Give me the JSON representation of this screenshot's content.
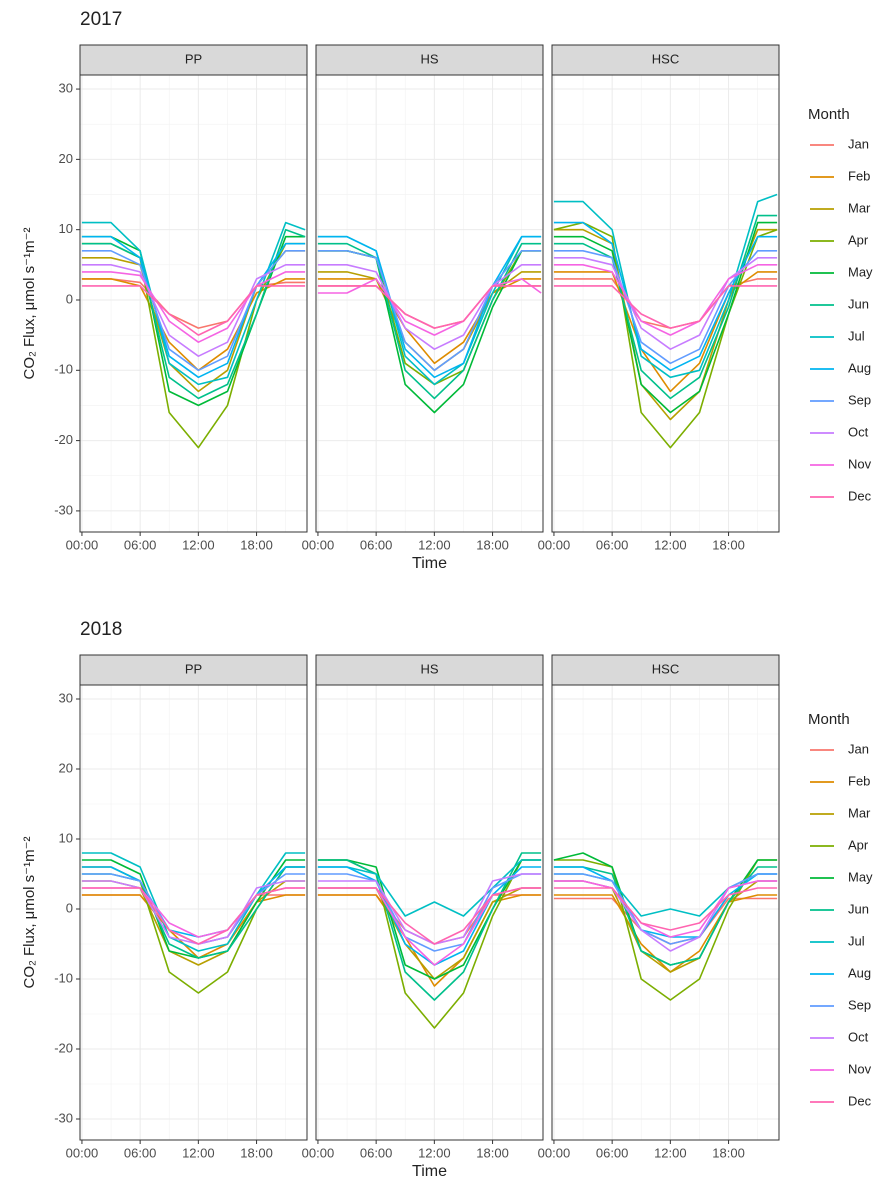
{
  "chart_data": [
    {
      "type": "line",
      "title": "2017",
      "x_label": "Time",
      "y_label": "CO₂ Flux, μmol s⁻¹m⁻²",
      "legend_title": "Month",
      "x": [
        0,
        3,
        6,
        9,
        12,
        15,
        18,
        21,
        23
      ],
      "xlim": [
        -0.2,
        23.2
      ],
      "xticks": [
        {
          "value": 0,
          "label": "00:00"
        },
        {
          "value": 6,
          "label": "06:00"
        },
        {
          "value": 12,
          "label": "12:00"
        },
        {
          "value": 18,
          "label": "18:00"
        }
      ],
      "ylim": [
        -33,
        32
      ],
      "yticks": [
        -30,
        -20,
        -10,
        0,
        10,
        20,
        30
      ],
      "grid": true,
      "series": [
        {
          "name": "Jan",
          "color": "#F8766D"
        },
        {
          "name": "Feb",
          "color": "#DE8C00"
        },
        {
          "name": "Mar",
          "color": "#B79F00"
        },
        {
          "name": "Apr",
          "color": "#7CAE00"
        },
        {
          "name": "May",
          "color": "#00BA38"
        },
        {
          "name": "Jun",
          "color": "#00C08B"
        },
        {
          "name": "Jul",
          "color": "#00BFC4"
        },
        {
          "name": "Aug",
          "color": "#00B4F0"
        },
        {
          "name": "Sep",
          "color": "#619CFF"
        },
        {
          "name": "Oct",
          "color": "#C77CFF"
        },
        {
          "name": "Nov",
          "color": "#F564E3"
        },
        {
          "name": "Dec",
          "color": "#FF64B0"
        }
      ],
      "panels": [
        {
          "name": "PP",
          "values": [
            [
              3,
              3,
              2.5,
              -2,
              -4,
              -3,
              2,
              2.5,
              2.5
            ],
            [
              3,
              3,
              2,
              -6,
              -10,
              -7,
              1,
              3,
              3
            ],
            [
              6,
              6,
              5,
              -9,
              -13,
              -10,
              2,
              7,
              7
            ],
            [
              8,
              8,
              6,
              -16,
              -21,
              -15,
              0,
              8,
              8
            ],
            [
              9,
              9,
              7,
              -13,
              -15,
              -13,
              -2,
              9,
              9
            ],
            [
              8,
              8,
              6,
              -11,
              -14,
              -12,
              -2,
              10,
              9
            ],
            [
              11,
              11,
              7,
              -9,
              -12,
              -11,
              0,
              11,
              10
            ],
            [
              9,
              9,
              6,
              -8,
              -11,
              -9,
              2,
              8,
              8
            ],
            [
              7,
              7,
              5,
              -7,
              -10,
              -8,
              2,
              7,
              7
            ],
            [
              5,
              5,
              4,
              -5,
              -8,
              -6,
              3,
              5,
              5
            ],
            [
              4,
              4,
              3.5,
              -3,
              -6,
              -4,
              2,
              4,
              4
            ],
            [
              2,
              2,
              2,
              -2,
              -5,
              -3,
              2,
              2,
              2
            ]
          ]
        },
        {
          "name": "HS",
          "values": [
            [
              2,
              2,
              2,
              -2,
              -4,
              -3,
              2,
              2,
              2
            ],
            [
              3,
              3,
              3,
              -4,
              -9,
              -6,
              1,
              3,
              3
            ],
            [
              4,
              4,
              3,
              -6,
              -10,
              -7,
              1,
              4,
              4
            ],
            [
              7,
              7,
              6,
              -9,
              -12,
              -10,
              0,
              7,
              7
            ],
            [
              7,
              7,
              6,
              -12,
              -16,
              -12,
              -1,
              7,
              7
            ],
            [
              8,
              8,
              6,
              -10,
              -14,
              -10,
              0,
              8,
              8
            ],
            [
              9,
              9,
              7,
              -8,
              -12,
              -9,
              1,
              9,
              9
            ],
            [
              9,
              9,
              7,
              -7,
              -11,
              -9,
              2,
              9,
              9
            ],
            [
              7,
              7,
              6,
              -6,
              -10,
              -7,
              2,
              7,
              7
            ],
            [
              5,
              5,
              4,
              -4,
              -7,
              -5,
              2,
              5,
              5
            ],
            [
              1,
              1,
              3,
              -3,
              -5,
              -3,
              2,
              3,
              1
            ],
            [
              2,
              2,
              2,
              -2,
              -4,
              -3,
              2,
              2,
              2
            ]
          ]
        },
        {
          "name": "HSC",
          "values": [
            [
              3,
              3,
              3,
              -3,
              -4,
              -3,
              2,
              3,
              3
            ],
            [
              4,
              4,
              4,
              -7,
              -13,
              -9,
              1,
              4,
              4
            ],
            [
              10,
              10,
              8,
              -12,
              -17,
              -13,
              0,
              10,
              10
            ],
            [
              10,
              11,
              9,
              -16,
              -21,
              -16,
              -2,
              9,
              10
            ],
            [
              9,
              9,
              7,
              -12,
              -16,
              -13,
              -2,
              11,
              11
            ],
            [
              8,
              8,
              6,
              -10,
              -14,
              -11,
              -1,
              12,
              12
            ],
            [
              14,
              14,
              10,
              -8,
              -11,
              -10,
              0,
              14,
              15
            ],
            [
              11,
              11,
              8,
              -7,
              -10,
              -8,
              1,
              9,
              9
            ],
            [
              7,
              7,
              6,
              -6,
              -9,
              -7,
              2,
              7,
              7
            ],
            [
              6,
              6,
              5,
              -4,
              -7,
              -5,
              3,
              6,
              6
            ],
            [
              5,
              5,
              4,
              -3,
              -5,
              -3,
              3,
              5,
              5
            ],
            [
              2,
              2,
              2,
              -2,
              -4,
              -3,
              2,
              2,
              2
            ]
          ]
        }
      ]
    },
    {
      "type": "line",
      "title": "2018",
      "x_label": "Time",
      "y_label": "CO₂ Flux, μmol s⁻¹m⁻²",
      "legend_title": "Month",
      "x": [
        0,
        3,
        6,
        9,
        12,
        15,
        18,
        21,
        23
      ],
      "xlim": [
        -0.2,
        23.2
      ],
      "xticks": [
        {
          "value": 0,
          "label": "00:00"
        },
        {
          "value": 6,
          "label": "06:00"
        },
        {
          "value": 12,
          "label": "12:00"
        },
        {
          "value": 18,
          "label": "18:00"
        }
      ],
      "ylim": [
        -33,
        32
      ],
      "yticks": [
        -30,
        -20,
        -10,
        0,
        10,
        20,
        30
      ],
      "grid": true,
      "series": [
        {
          "name": "Jan",
          "color": "#F8766D"
        },
        {
          "name": "Feb",
          "color": "#DE8C00"
        },
        {
          "name": "Mar",
          "color": "#B79F00"
        },
        {
          "name": "Apr",
          "color": "#7CAE00"
        },
        {
          "name": "May",
          "color": "#00BA38"
        },
        {
          "name": "Jun",
          "color": "#00C08B"
        },
        {
          "name": "Jul",
          "color": "#00BFC4"
        },
        {
          "name": "Aug",
          "color": "#00B4F0"
        },
        {
          "name": "Sep",
          "color": "#619CFF"
        },
        {
          "name": "Oct",
          "color": "#C77CFF"
        },
        {
          "name": "Nov",
          "color": "#F564E3"
        },
        {
          "name": "Dec",
          "color": "#FF64B0"
        }
      ],
      "panels": [
        {
          "name": "PP",
          "values": [
            [
              2,
              2,
              2,
              -3,
              -5,
              -4,
              2,
              2,
              2
            ],
            [
              2,
              2,
              2,
              -3,
              -7,
              -5,
              1,
              2,
              2
            ],
            [
              4,
              4,
              3,
              -6,
              -8,
              -6,
              1,
              4,
              4
            ],
            [
              6,
              6,
              4,
              -9,
              -12,
              -9,
              0,
              6,
              6
            ],
            [
              7,
              7,
              5,
              -6,
              -7,
              -6,
              1,
              7,
              7
            ],
            [
              5,
              5,
              4,
              -5,
              -7,
              -6,
              0,
              6,
              6
            ],
            [
              8,
              8,
              6,
              -4,
              -6,
              -5,
              2,
              8,
              8
            ],
            [
              6,
              6,
              4,
              -3,
              -4,
              -3,
              2,
              6,
              6
            ],
            [
              5,
              5,
              4,
              -3,
              -5,
              -4,
              2,
              5,
              5
            ],
            [
              4,
              4,
              3,
              -4,
              -5,
              -4,
              3,
              4,
              4
            ],
            [
              3,
              3,
              3,
              -2,
              -4,
              -3,
              2,
              3,
              3
            ],
            [
              3,
              3,
              3,
              -3,
              -5,
              -3,
              2,
              3,
              3
            ]
          ]
        },
        {
          "name": "HS",
          "values": [
            [
              2,
              2,
              2,
              -3,
              -5,
              -4,
              2,
              2,
              2
            ],
            [
              2,
              2,
              2,
              -4,
              -11,
              -7,
              1,
              2,
              2
            ],
            [
              3,
              3,
              3,
              -5,
              -10,
              -7,
              1,
              3,
              3
            ],
            [
              7,
              7,
              5,
              -12,
              -17,
              -12,
              -1,
              7,
              7
            ],
            [
              7,
              7,
              6,
              -8,
              -10,
              -8,
              0,
              7,
              7
            ],
            [
              7,
              7,
              5,
              -9,
              -13,
              -9,
              0,
              8,
              8
            ],
            [
              6,
              6,
              5,
              -1,
              1,
              -1,
              3,
              7,
              7
            ],
            [
              6,
              6,
              4,
              -5,
              -8,
              -6,
              2,
              6,
              6
            ],
            [
              5,
              5,
              4,
              -4,
              -6,
              -5,
              3,
              5,
              5
            ],
            [
              4,
              4,
              4,
              -3,
              -5,
              -4,
              4,
              5,
              5
            ],
            [
              3,
              3,
              3,
              -4,
              -8,
              -5,
              2,
              3,
              3
            ],
            [
              3,
              3,
              3,
              -2,
              -5,
              -3,
              2,
              3,
              3
            ]
          ]
        },
        {
          "name": "HSC",
          "values": [
            [
              1.5,
              1.5,
              1.5,
              -3,
              -5,
              -4,
              1.5,
              1.5,
              1.5
            ],
            [
              2,
              2,
              2,
              -5,
              -9,
              -6,
              1,
              2,
              2
            ],
            [
              4,
              4,
              3,
              -6,
              -9,
              -7,
              1,
              4,
              4
            ],
            [
              7,
              7,
              6,
              -10,
              -13,
              -10,
              0,
              7,
              7
            ],
            [
              7,
              8,
              6,
              -6,
              -8,
              -7,
              1,
              7,
              7
            ],
            [
              6,
              6,
              5,
              -6,
              -8,
              -7,
              1,
              6,
              6
            ],
            [
              5,
              5,
              4,
              -1,
              0,
              -1,
              3,
              5,
              5
            ],
            [
              6,
              6,
              4,
              -3,
              -4,
              -4,
              2,
              5,
              5
            ],
            [
              5,
              5,
              4,
              -3,
              -5,
              -4,
              3,
              5,
              5
            ],
            [
              4,
              4,
              3,
              -3,
              -6,
              -4,
              3,
              4,
              4
            ],
            [
              4,
              4,
              3,
              -2,
              -4,
              -3,
              3,
              4,
              4
            ],
            [
              3,
              3,
              3,
              -2,
              -3,
              -2,
              2,
              3,
              3
            ]
          ]
        }
      ]
    }
  ]
}
